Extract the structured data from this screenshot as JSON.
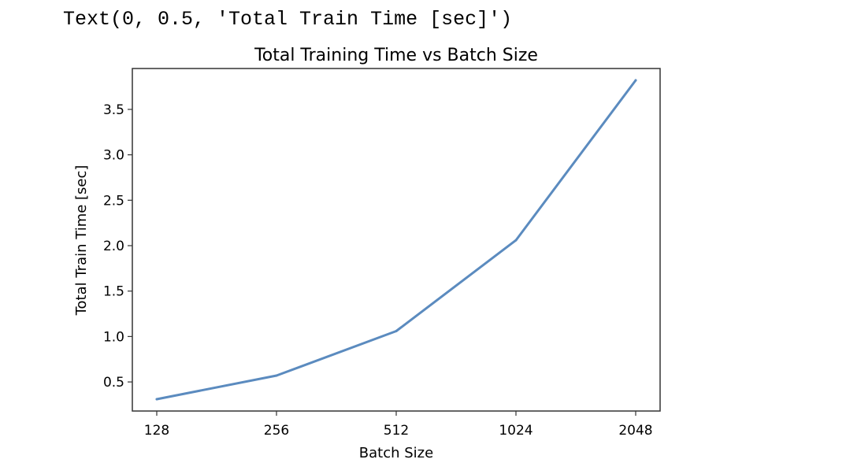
{
  "output_line": "Text(0, 0.5, 'Total Train Time [sec]')",
  "chart_data": {
    "type": "line",
    "title": "Total Training Time vs Batch Size",
    "xlabel": "Batch Size",
    "ylabel": "Total Train Time [sec]",
    "categories": [
      "128",
      "256",
      "512",
      "1024",
      "2048"
    ],
    "series": [
      {
        "values": [
          0.31,
          0.57,
          1.06,
          2.06,
          3.82
        ],
        "color": "#5b8bbf"
      }
    ],
    "ylim": [
      0.18,
      3.95
    ],
    "yticks": [
      0.5,
      1.0,
      1.5,
      2.0,
      2.5,
      3.0,
      3.5
    ],
    "ytick_labels": [
      "0.5",
      "1.0",
      "1.5",
      "2.0",
      "2.5",
      "3.0",
      "3.5"
    ],
    "grid": false
  }
}
